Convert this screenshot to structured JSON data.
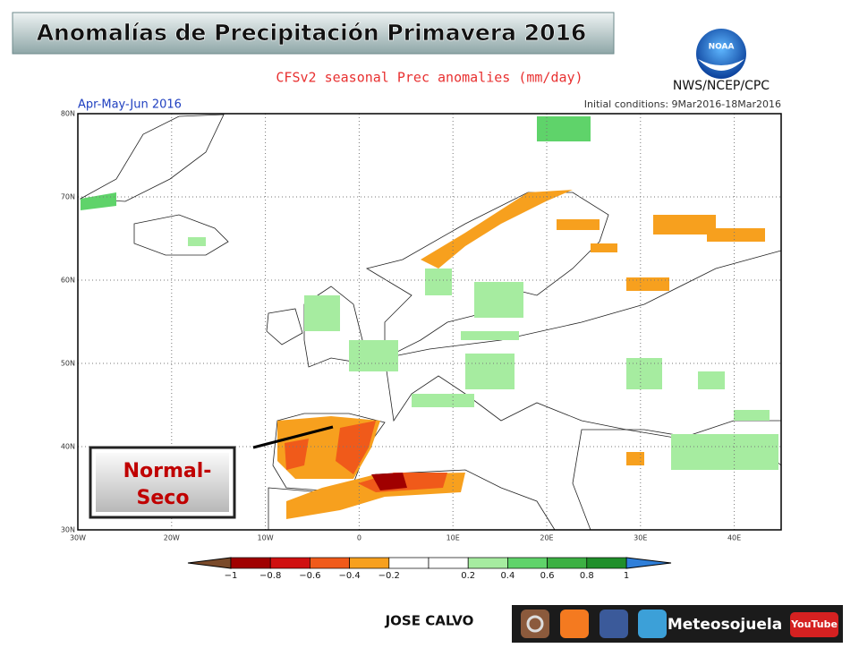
{
  "header": {
    "title": "Anomalías de Precipitación Primavera 2016"
  },
  "logo": {
    "text": "NOAA",
    "agency": "NWS/NCEP/CPC"
  },
  "map": {
    "title": "CFSv2 seasonal Prec anomalies (mm/day)",
    "period": "Apr-May-Jun 2016",
    "initial_conditions": "Initial conditions: 9Mar2016-18Mar2016",
    "lat_labels": [
      "80N",
      "70N",
      "60N",
      "50N",
      "40N",
      "30N"
    ],
    "lon_labels": [
      "30W",
      "20W",
      "10W",
      "0",
      "10E",
      "20E",
      "30E",
      "40E"
    ]
  },
  "colorbar": {
    "labels": [
      "−1",
      "−0.8",
      "−0.6",
      "−0.4",
      "−0.2",
      "0.2",
      "0.4",
      "0.6",
      "0.8",
      "1"
    ],
    "colors": [
      "#a00000",
      "#d01010",
      "#f05a1a",
      "#f7a01e",
      "#ffffff",
      "#ffffff",
      "#a6eca0",
      "#5fd36a",
      "#3cb043",
      "#1f8f2a"
    ],
    "low_color": "#7a4a2a",
    "high_color": "#2f7fd9"
  },
  "callout": {
    "line1": "Normal-",
    "line2": "Seco"
  },
  "footer": {
    "author": "JOSE CALVO",
    "brand": "Meteosojuela",
    "youtube": "YouTube"
  }
}
